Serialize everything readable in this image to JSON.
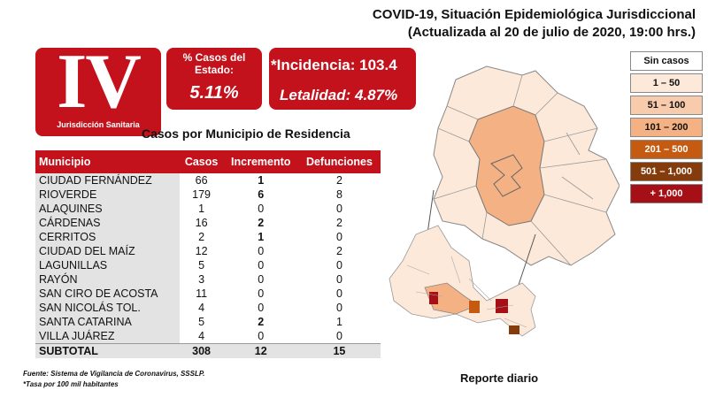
{
  "header": {
    "title_line1": "COVID-19, Situación Epidemiológica Jurisdiccional",
    "title_line2": "(Actualizada al 20 de julio de 2020, 19:00 hrs.)"
  },
  "logo": {
    "numeral": "IV",
    "subtitle": "Jurisdicción Sanitaria"
  },
  "stats": {
    "pct_label": "% Casos del Estado:",
    "pct_value": "5.11%",
    "incidencia": "*Incidencia: 103.4",
    "letalidad": "Letalidad: 4.87%"
  },
  "table": {
    "title": "Casos por Municipio  de Residencia",
    "headers": [
      "Municipio",
      "Casos",
      "Incremento",
      "Defunciones"
    ],
    "rows": [
      [
        "CIUDAD FERNÁNDEZ",
        "66",
        "1",
        "2"
      ],
      [
        "RIOVERDE",
        "179",
        "6",
        "8"
      ],
      [
        "ALAQUINES",
        "1",
        "0",
        "0"
      ],
      [
        "CÁRDENAS",
        "16",
        "2",
        "2"
      ],
      [
        "CERRITOS",
        "2",
        "1",
        "0"
      ],
      [
        "CIUDAD DEL MAÍZ",
        "12",
        "0",
        "2"
      ],
      [
        "LAGUNILLAS",
        "5",
        "0",
        "0"
      ],
      [
        "RAYÓN",
        "3",
        "0",
        "0"
      ],
      [
        "SAN CIRO DE ACOSTA",
        "11",
        "0",
        "0"
      ],
      [
        "SAN NICOLÁS TOL.",
        "4",
        "0",
        "0"
      ],
      [
        "SANTA CATARINA",
        "5",
        "2",
        "1"
      ],
      [
        "VILLA JUÁREZ",
        "4",
        "0",
        "0"
      ]
    ],
    "total": [
      "SUBTOTAL",
      "308",
      "12",
      "15"
    ]
  },
  "footnotes": {
    "source": "Fuente: Sistema de Vigilancia  de Coronavirus,  SSSLP.",
    "rate": "*Tasa por 100 mil habitantes"
  },
  "legend": [
    {
      "label": "Sin casos",
      "color": "#ffffff"
    },
    {
      "label": "1 – 50",
      "color": "#fde9d9"
    },
    {
      "label": "51 – 100",
      "color": "#f8cbad"
    },
    {
      "label": "101 – 200",
      "color": "#f4b183"
    },
    {
      "label": "201 – 500",
      "color": "#c55a11"
    },
    {
      "label": "501 – 1,000",
      "color": "#843c0c"
    },
    {
      "label": "+ 1,000",
      "color": "#a50f15"
    }
  ],
  "report_label": "Reporte diario",
  "colors": {
    "accent": "#c4121c"
  }
}
